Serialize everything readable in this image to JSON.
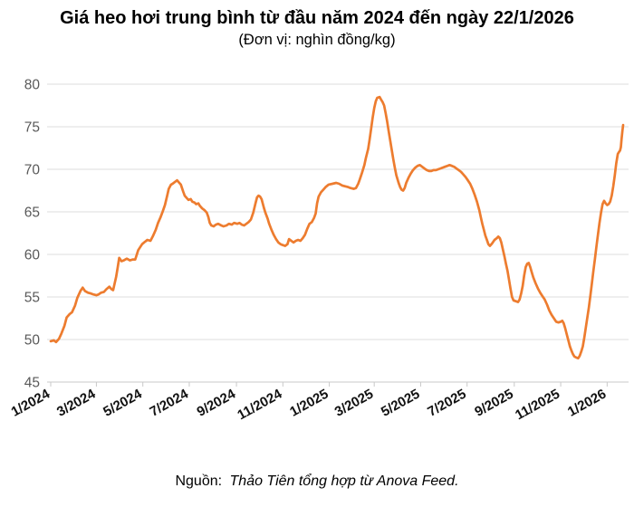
{
  "header": {
    "title": "Giá heo hơi trung bình từ đầu năm 2024 đến ngày 22/1/2026",
    "subtitle": "(Đơn vị: nghìn đồng/kg)"
  },
  "footer": {
    "source_label": "Nguồn:",
    "source_text": "Thảo Tiên tổng hợp từ Anova Feed."
  },
  "chart_data": {
    "type": "line",
    "title": "Giá heo hơi trung bình từ đầu năm 2024 đến ngày 22/1/2026",
    "unit": "nghìn đồng/kg",
    "series_name": "Giá heo hơi trung bình (nghìn đồng/kg)",
    "line_color": "#ED7C2F",
    "grid_color": "#DCDCDC",
    "axis_color": "#C9C9C9",
    "y_label_color": "#595959",
    "x_label_color": "#111111",
    "grid": "horizontal-only",
    "legend": "none",
    "ylim": [
      45,
      80
    ],
    "y_ticks": [
      45,
      50,
      55,
      60,
      65,
      70,
      75,
      80
    ],
    "xlim_days": [
      0,
      752
    ],
    "x_ticks": [
      {
        "day": 0,
        "label": "1/2024"
      },
      {
        "day": 60,
        "label": "3/2024"
      },
      {
        "day": 121,
        "label": "5/2024"
      },
      {
        "day": 182,
        "label": "7/2024"
      },
      {
        "day": 244,
        "label": "9/2024"
      },
      {
        "day": 305,
        "label": "11/2024"
      },
      {
        "day": 366,
        "label": "1/2025"
      },
      {
        "day": 425,
        "label": "3/2025"
      },
      {
        "day": 486,
        "label": "5/2025"
      },
      {
        "day": 547,
        "label": "7/2025"
      },
      {
        "day": 609,
        "label": "9/2025"
      },
      {
        "day": 670,
        "label": "11/2025"
      },
      {
        "day": 731,
        "label": "1/2026"
      }
    ],
    "points_day_value": [
      [
        0,
        49.8
      ],
      [
        4,
        49.9
      ],
      [
        7,
        49.7
      ],
      [
        11,
        50.1
      ],
      [
        14,
        50.7
      ],
      [
        18,
        51.6
      ],
      [
        21,
        52.6
      ],
      [
        25,
        53.0
      ],
      [
        28,
        53.2
      ],
      [
        32,
        54.0
      ],
      [
        35,
        54.9
      ],
      [
        39,
        55.7
      ],
      [
        42,
        56.1
      ],
      [
        45,
        55.7
      ],
      [
        49,
        55.5
      ],
      [
        53,
        55.4
      ],
      [
        56,
        55.3
      ],
      [
        60,
        55.2
      ],
      [
        63,
        55.3
      ],
      [
        66,
        55.5
      ],
      [
        70,
        55.6
      ],
      [
        73,
        55.9
      ],
      [
        77,
        56.2
      ],
      [
        80,
        55.9
      ],
      [
        82,
        55.8
      ],
      [
        84,
        56.6
      ],
      [
        86,
        57.4
      ],
      [
        88,
        58.5
      ],
      [
        90,
        59.6
      ],
      [
        93,
        59.2
      ],
      [
        96,
        59.3
      ],
      [
        100,
        59.5
      ],
      [
        104,
        59.3
      ],
      [
        108,
        59.4
      ],
      [
        111,
        59.4
      ],
      [
        115,
        60.5
      ],
      [
        120,
        61.2
      ],
      [
        124,
        61.5
      ],
      [
        127,
        61.7
      ],
      [
        131,
        61.6
      ],
      [
        134,
        62.1
      ],
      [
        138,
        62.9
      ],
      [
        141,
        63.7
      ],
      [
        144,
        64.3
      ],
      [
        147,
        65.0
      ],
      [
        150,
        65.8
      ],
      [
        153,
        66.9
      ],
      [
        155,
        67.7
      ],
      [
        158,
        68.2
      ],
      [
        160,
        68.3
      ],
      [
        163,
        68.5
      ],
      [
        166,
        68.7
      ],
      [
        169,
        68.4
      ],
      [
        171,
        68.2
      ],
      [
        174,
        67.4
      ],
      [
        176,
        66.9
      ],
      [
        179,
        66.6
      ],
      [
        181,
        66.4
      ],
      [
        184,
        66.5
      ],
      [
        186,
        66.2
      ],
      [
        189,
        66.1
      ],
      [
        191,
        65.9
      ],
      [
        194,
        66.0
      ],
      [
        196,
        65.7
      ],
      [
        199,
        65.4
      ],
      [
        202,
        65.2
      ],
      [
        205,
        64.9
      ],
      [
        207,
        64.4
      ],
      [
        209,
        63.7
      ],
      [
        211,
        63.4
      ],
      [
        214,
        63.3
      ],
      [
        217,
        63.5
      ],
      [
        220,
        63.6
      ],
      [
        224,
        63.4
      ],
      [
        227,
        63.3
      ],
      [
        231,
        63.4
      ],
      [
        234,
        63.6
      ],
      [
        238,
        63.5
      ],
      [
        241,
        63.7
      ],
      [
        245,
        63.6
      ],
      [
        248,
        63.7
      ],
      [
        251,
        63.5
      ],
      [
        254,
        63.4
      ],
      [
        257,
        63.6
      ],
      [
        260,
        63.8
      ],
      [
        263,
        64.1
      ],
      [
        266,
        64.9
      ],
      [
        269,
        66.0
      ],
      [
        271,
        66.7
      ],
      [
        273,
        66.9
      ],
      [
        275,
        66.8
      ],
      [
        277,
        66.5
      ],
      [
        280,
        65.5
      ],
      [
        282,
        64.9
      ],
      [
        285,
        64.2
      ],
      [
        287,
        63.6
      ],
      [
        290,
        62.9
      ],
      [
        293,
        62.3
      ],
      [
        296,
        61.8
      ],
      [
        299,
        61.4
      ],
      [
        302,
        61.2
      ],
      [
        305,
        61.1
      ],
      [
        308,
        61.0
      ],
      [
        311,
        61.2
      ],
      [
        313,
        61.8
      ],
      [
        316,
        61.6
      ],
      [
        319,
        61.4
      ],
      [
        322,
        61.6
      ],
      [
        325,
        61.7
      ],
      [
        328,
        61.6
      ],
      [
        331,
        61.9
      ],
      [
        334,
        62.3
      ],
      [
        337,
        63.0
      ],
      [
        340,
        63.6
      ],
      [
        343,
        63.8
      ],
      [
        346,
        64.3
      ],
      [
        348,
        64.8
      ],
      [
        350,
        66.0
      ],
      [
        352,
        66.8
      ],
      [
        355,
        67.3
      ],
      [
        358,
        67.6
      ],
      [
        361,
        67.9
      ],
      [
        365,
        68.2
      ],
      [
        370,
        68.3
      ],
      [
        375,
        68.4
      ],
      [
        379,
        68.3
      ],
      [
        383,
        68.1
      ],
      [
        387,
        68.0
      ],
      [
        391,
        67.9
      ],
      [
        394,
        67.8
      ],
      [
        398,
        67.7
      ],
      [
        401,
        67.8
      ],
      [
        404,
        68.3
      ],
      [
        406,
        68.8
      ],
      [
        409,
        69.6
      ],
      [
        412,
        70.5
      ],
      [
        414,
        71.3
      ],
      [
        417,
        72.4
      ],
      [
        419,
        73.5
      ],
      [
        421,
        74.8
      ],
      [
        423,
        76.1
      ],
      [
        425,
        77.2
      ],
      [
        427,
        78.0
      ],
      [
        429,
        78.4
      ],
      [
        432,
        78.5
      ],
      [
        434,
        78.2
      ],
      [
        436,
        77.9
      ],
      [
        438,
        77.5
      ],
      [
        440,
        76.6
      ],
      [
        442,
        75.6
      ],
      [
        444,
        74.5
      ],
      [
        446,
        73.4
      ],
      [
        448,
        72.3
      ],
      [
        450,
        71.2
      ],
      [
        452,
        70.2
      ],
      [
        454,
        69.3
      ],
      [
        457,
        68.4
      ],
      [
        459,
        67.9
      ],
      [
        461,
        67.6
      ],
      [
        463,
        67.5
      ],
      [
        465,
        67.8
      ],
      [
        467,
        68.4
      ],
      [
        470,
        69.0
      ],
      [
        473,
        69.5
      ],
      [
        476,
        69.9
      ],
      [
        479,
        70.2
      ],
      [
        482,
        70.4
      ],
      [
        485,
        70.5
      ],
      [
        488,
        70.3
      ],
      [
        491,
        70.1
      ],
      [
        494,
        69.9
      ],
      [
        497,
        69.8
      ],
      [
        500,
        69.8
      ],
      [
        503,
        69.9
      ],
      [
        506,
        69.9
      ],
      [
        509,
        70.0
      ],
      [
        512,
        70.1
      ],
      [
        515,
        70.2
      ],
      [
        518,
        70.3
      ],
      [
        521,
        70.4
      ],
      [
        524,
        70.5
      ],
      [
        527,
        70.4
      ],
      [
        530,
        70.3
      ],
      [
        533,
        70.1
      ],
      [
        536,
        69.9
      ],
      [
        539,
        69.7
      ],
      [
        542,
        69.4
      ],
      [
        545,
        69.1
      ],
      [
        548,
        68.7
      ],
      [
        551,
        68.3
      ],
      [
        554,
        67.7
      ],
      [
        557,
        67.0
      ],
      [
        560,
        66.2
      ],
      [
        563,
        65.2
      ],
      [
        565,
        64.4
      ],
      [
        567,
        63.6
      ],
      [
        569,
        62.9
      ],
      [
        571,
        62.2
      ],
      [
        573,
        61.7
      ],
      [
        575,
        61.2
      ],
      [
        577,
        61.0
      ],
      [
        580,
        61.3
      ],
      [
        583,
        61.7
      ],
      [
        586,
        61.9
      ],
      [
        588,
        62.1
      ],
      [
        590,
        61.9
      ],
      [
        592,
        61.4
      ],
      [
        594,
        60.6
      ],
      [
        596,
        59.8
      ],
      [
        598,
        58.9
      ],
      [
        600,
        58.1
      ],
      [
        602,
        57.1
      ],
      [
        604,
        56.0
      ],
      [
        606,
        55.0
      ],
      [
        608,
        54.6
      ],
      [
        611,
        54.5
      ],
      [
        614,
        54.4
      ],
      [
        616,
        54.7
      ],
      [
        618,
        55.4
      ],
      [
        620,
        56.3
      ],
      [
        622,
        57.5
      ],
      [
        624,
        58.5
      ],
      [
        626,
        58.9
      ],
      [
        628,
        59.0
      ],
      [
        630,
        58.5
      ],
      [
        632,
        57.9
      ],
      [
        634,
        57.3
      ],
      [
        637,
        56.6
      ],
      [
        640,
        56.0
      ],
      [
        643,
        55.5
      ],
      [
        646,
        55.1
      ],
      [
        649,
        54.7
      ],
      [
        652,
        54.1
      ],
      [
        655,
        53.4
      ],
      [
        658,
        52.9
      ],
      [
        661,
        52.5
      ],
      [
        664,
        52.1
      ],
      [
        667,
        52.0
      ],
      [
        670,
        52.1
      ],
      [
        672,
        52.2
      ],
      [
        674,
        51.9
      ],
      [
        676,
        51.3
      ],
      [
        678,
        50.6
      ],
      [
        680,
        49.9
      ],
      [
        682,
        49.2
      ],
      [
        684,
        48.7
      ],
      [
        686,
        48.3
      ],
      [
        688,
        48.0
      ],
      [
        690,
        47.9
      ],
      [
        693,
        47.8
      ],
      [
        695,
        48.1
      ],
      [
        697,
        48.6
      ],
      [
        699,
        49.2
      ],
      [
        701,
        50.2
      ],
      [
        703,
        51.4
      ],
      [
        705,
        52.6
      ],
      [
        707,
        53.8
      ],
      [
        709,
        55.2
      ],
      [
        711,
        56.6
      ],
      [
        713,
        58.1
      ],
      [
        715,
        59.5
      ],
      [
        717,
        61.0
      ],
      [
        719,
        62.4
      ],
      [
        721,
        63.7
      ],
      [
        723,
        64.9
      ],
      [
        725,
        65.9
      ],
      [
        727,
        66.3
      ],
      [
        729,
        66.0
      ],
      [
        731,
        65.8
      ],
      [
        733,
        65.9
      ],
      [
        735,
        66.2
      ],
      [
        737,
        66.9
      ],
      [
        739,
        68.0
      ],
      [
        741,
        69.3
      ],
      [
        743,
        70.7
      ],
      [
        745,
        71.8
      ],
      [
        747,
        72.1
      ],
      [
        748,
        72.2
      ],
      [
        749,
        72.6
      ],
      [
        750,
        73.6
      ],
      [
        751,
        74.5
      ],
      [
        752,
        75.2
      ]
    ]
  }
}
